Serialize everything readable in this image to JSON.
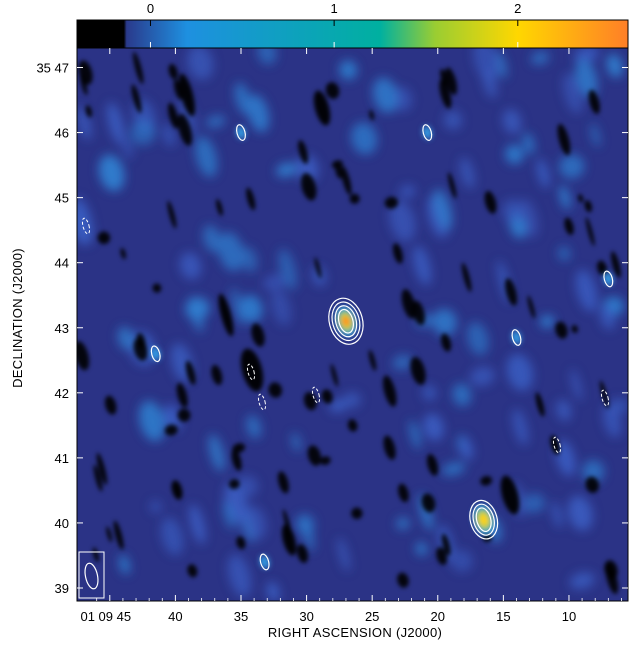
{
  "colorbar": {
    "tick_labels": [
      "0",
      "1",
      "2"
    ],
    "tick_values": [
      0,
      1,
      2
    ],
    "range": [
      -0.4,
      2.6
    ],
    "colors": [
      "#000000",
      "#2a3a8c",
      "#1e90e0",
      "#00b0a0",
      "#9acd32",
      "#ffd700",
      "#ff7f27"
    ]
  },
  "axes": {
    "xlabel": "RIGHT ASCENSION (J2000)",
    "ylabel": "DECLINATION (J2000)",
    "x_ticks": [
      {
        "label": "01 09 45",
        "value": 45
      },
      {
        "label": "40",
        "value": 40
      },
      {
        "label": "35",
        "value": 35
      },
      {
        "label": "30",
        "value": 30
      },
      {
        "label": "25",
        "value": 25
      },
      {
        "label": "20",
        "value": 20
      },
      {
        "label": "15",
        "value": 15
      },
      {
        "label": "10",
        "value": 10
      }
    ],
    "y_ticks": [
      {
        "label": "35 47",
        "value": 47
      },
      {
        "label": "46",
        "value": 46
      },
      {
        "label": "45",
        "value": 45
      },
      {
        "label": "44",
        "value": 44
      },
      {
        "label": "43",
        "value": 43
      },
      {
        "label": "42",
        "value": 42
      },
      {
        "label": "41",
        "value": 41
      },
      {
        "label": "40",
        "value": 40
      },
      {
        "label": "39",
        "value": 39
      }
    ],
    "xlim": [
      47.5,
      5.5
    ],
    "ylim": [
      38.8,
      47.3
    ]
  },
  "sources": [
    {
      "ra": 27.0,
      "dec": 43.1,
      "peak": 2.3,
      "contours": 4
    },
    {
      "ra": 16.5,
      "dec": 40.05,
      "peak": 1.9,
      "contours": 3
    },
    {
      "ra": 35.0,
      "dec": 46.0,
      "peak": 0.5,
      "contours": 1
    },
    {
      "ra": 20.8,
      "dec": 46.0,
      "peak": 0.4,
      "contours": 1
    },
    {
      "ra": 14.0,
      "dec": 42.85,
      "peak": 0.4,
      "contours": 1
    },
    {
      "ra": 41.5,
      "dec": 42.6,
      "peak": 0.4,
      "contours": 1
    },
    {
      "ra": 7.0,
      "dec": 43.75,
      "peak": 0.4,
      "contours": 1
    },
    {
      "ra": 33.2,
      "dec": 39.4,
      "peak": 0.4,
      "contours": 1
    }
  ],
  "beam": {
    "label_icon": "beam-ellipse-icon"
  }
}
